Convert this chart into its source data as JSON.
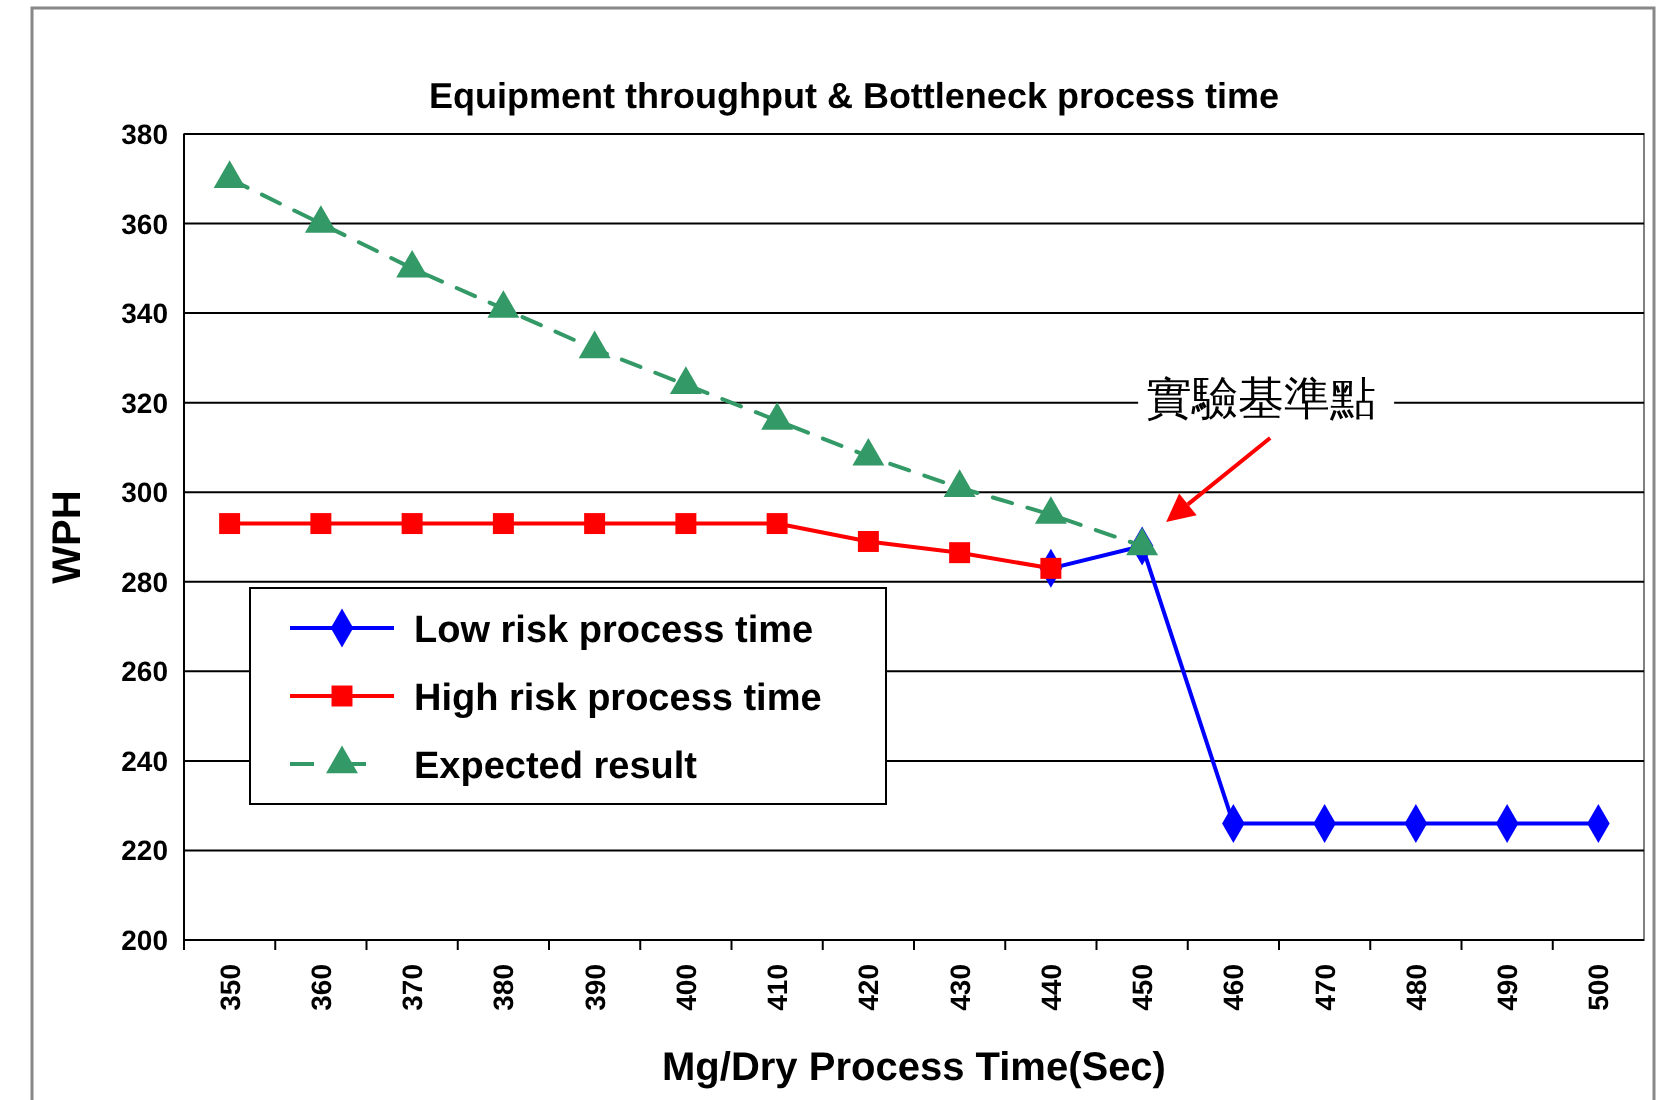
{
  "chart_data": {
    "type": "line",
    "title": "Equipment throughput & Bottleneck process time",
    "xlabel": "Mg/Dry Process Time(Sec)",
    "ylabel": "WPH",
    "categories": [
      "350",
      "360",
      "370",
      "380",
      "390",
      "400",
      "410",
      "420",
      "430",
      "440",
      "450",
      "460",
      "470",
      "480",
      "490",
      "500"
    ],
    "series": [
      {
        "name": "Low risk process time",
        "color": "#0000ff",
        "marker": "diamond",
        "line_style": "solid",
        "values": [
          null,
          null,
          null,
          null,
          null,
          null,
          null,
          null,
          null,
          283,
          288,
          226,
          226,
          226,
          226,
          226
        ]
      },
      {
        "name": "High risk process time",
        "color": "#ff0000",
        "marker": "square",
        "line_style": "solid",
        "values": [
          293,
          293,
          293,
          293,
          293,
          293,
          293,
          289,
          286.5,
          283,
          null,
          null,
          null,
          null,
          null,
          null
        ]
      },
      {
        "name": "Expected result",
        "color": "#339966",
        "marker": "triangle",
        "line_style": "dashed",
        "values": [
          370,
          360,
          350,
          341,
          332,
          324,
          316,
          308,
          301,
          295,
          288,
          null,
          null,
          null,
          null,
          null
        ]
      }
    ],
    "ylim": [
      200,
      380
    ],
    "yticks": [
      200,
      220,
      240,
      260,
      280,
      300,
      320,
      340,
      360,
      380
    ],
    "grid": "y",
    "legend": "bottom left",
    "annotations": [
      {
        "text": "實驗基準點",
        "x": "450",
        "y": 288
      }
    ]
  }
}
